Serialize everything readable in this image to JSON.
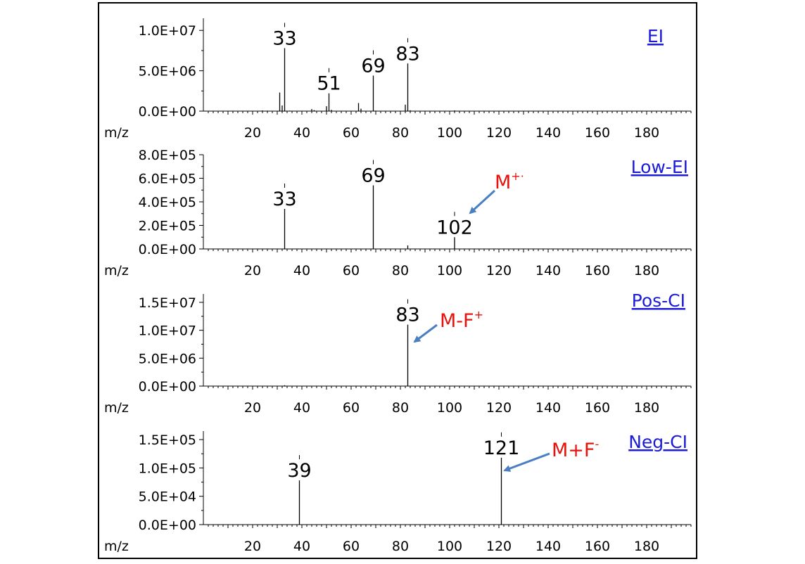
{
  "accent_colors": {
    "annotation": "#e8120c",
    "arrow": "#4a7fc1",
    "method_link": "#1b1bd8"
  },
  "chart_data": [
    {
      "type": "bar",
      "method": "EI",
      "xlabel": "m/z",
      "xlim": [
        0,
        200
      ],
      "xticks": [
        20,
        40,
        60,
        80,
        100,
        120,
        140,
        160,
        180
      ],
      "ylim": [
        0,
        11500000
      ],
      "yticks": [
        0,
        5000000,
        10000000
      ],
      "ytick_labels": [
        "0.0E+00",
        "5.0E+06",
        "1.0E+07"
      ],
      "peaks": [
        {
          "x": 12,
          "y": 50000
        },
        {
          "x": 14,
          "y": 40000
        },
        {
          "x": 19,
          "y": 30000
        },
        {
          "x": 24,
          "y": 80000
        },
        {
          "x": 25,
          "y": 40000
        },
        {
          "x": 26,
          "y": 60000
        },
        {
          "x": 31,
          "y": 2300000
        },
        {
          "x": 32,
          "y": 700000
        },
        {
          "x": 33,
          "y": 7800000
        },
        {
          "x": 35,
          "y": 60000
        },
        {
          "x": 44,
          "y": 250000
        },
        {
          "x": 45,
          "y": 120000
        },
        {
          "x": 50,
          "y": 600000
        },
        {
          "x": 51,
          "y": 2200000
        },
        {
          "x": 52,
          "y": 150000
        },
        {
          "x": 63,
          "y": 1000000
        },
        {
          "x": 64,
          "y": 300000
        },
        {
          "x": 69,
          "y": 4400000
        },
        {
          "x": 70,
          "y": 60000
        },
        {
          "x": 82,
          "y": 800000
        },
        {
          "x": 83,
          "y": 5900000
        },
        {
          "x": 84,
          "y": 100000
        },
        {
          "x": 102,
          "y": 80000
        }
      ],
      "peak_labels": [
        {
          "x": 33,
          "text": "33",
          "y": 7800000
        },
        {
          "x": 51,
          "text": "51",
          "y": 2200000
        },
        {
          "x": 69,
          "text": "69",
          "y": 4400000
        },
        {
          "x": 83,
          "text": "83",
          "y": 5900000
        }
      ]
    },
    {
      "type": "bar",
      "method": "Low-EI",
      "xlabel": "m/z",
      "xlim": [
        0,
        200
      ],
      "xticks": [
        20,
        40,
        60,
        80,
        100,
        120,
        140,
        160,
        180
      ],
      "ylim": [
        0,
        800000
      ],
      "yticks": [
        0,
        200000,
        400000,
        600000,
        800000
      ],
      "ytick_labels": [
        "0.0E+00",
        "2.0E+05",
        "4.0E+05",
        "6.0E+05",
        "8.0E+05"
      ],
      "peaks": [
        {
          "x": 33,
          "y": 340000
        },
        {
          "x": 69,
          "y": 540000
        },
        {
          "x": 83,
          "y": 30000
        },
        {
          "x": 102,
          "y": 100000
        }
      ],
      "peak_labels": [
        {
          "x": 33,
          "text": "33",
          "y": 340000
        },
        {
          "x": 69,
          "text": "69",
          "y": 540000
        },
        {
          "x": 102,
          "text": "102",
          "y": 100000
        }
      ],
      "annotation": {
        "text": "M",
        "superscript": "+·",
        "target_mz": 102
      }
    },
    {
      "type": "bar",
      "method": "Pos-CI",
      "xlabel": "m/z",
      "xlim": [
        0,
        200
      ],
      "xticks": [
        20,
        40,
        60,
        80,
        100,
        120,
        140,
        160,
        180
      ],
      "ylim": [
        0,
        16500000
      ],
      "yticks": [
        0,
        5000000,
        10000000,
        15000000
      ],
      "ytick_labels": [
        "0.0E+00",
        "5.0E+06",
        "1.0E+07",
        "1.5E+07"
      ],
      "peaks": [
        {
          "x": 33,
          "y": 150000
        },
        {
          "x": 69,
          "y": 100000
        },
        {
          "x": 83,
          "y": 11000000
        }
      ],
      "peak_labels": [
        {
          "x": 83,
          "text": "83",
          "y": 11000000
        }
      ],
      "annotation": {
        "text": "M-F",
        "superscript": "+",
        "target_mz": 83
      }
    },
    {
      "type": "bar",
      "method": "Neg-CI",
      "xlabel": "m/z",
      "xlim": [
        0,
        200
      ],
      "xticks": [
        20,
        40,
        60,
        80,
        100,
        120,
        140,
        160,
        180
      ],
      "ylim": [
        0,
        165000
      ],
      "yticks": [
        0,
        50000,
        100000,
        150000
      ],
      "ytick_labels": [
        "0.0E+00",
        "5.0E+04",
        "1.0E+05",
        "1.5E+05"
      ],
      "peaks": [
        {
          "x": 39,
          "y": 78000
        },
        {
          "x": 121,
          "y": 118000
        }
      ],
      "peak_labels": [
        {
          "x": 39,
          "text": "39",
          "y": 78000
        },
        {
          "x": 121,
          "text": "121",
          "y": 118000
        }
      ],
      "annotation": {
        "text": "M+F",
        "superscript": "-",
        "target_mz": 121
      }
    }
  ]
}
